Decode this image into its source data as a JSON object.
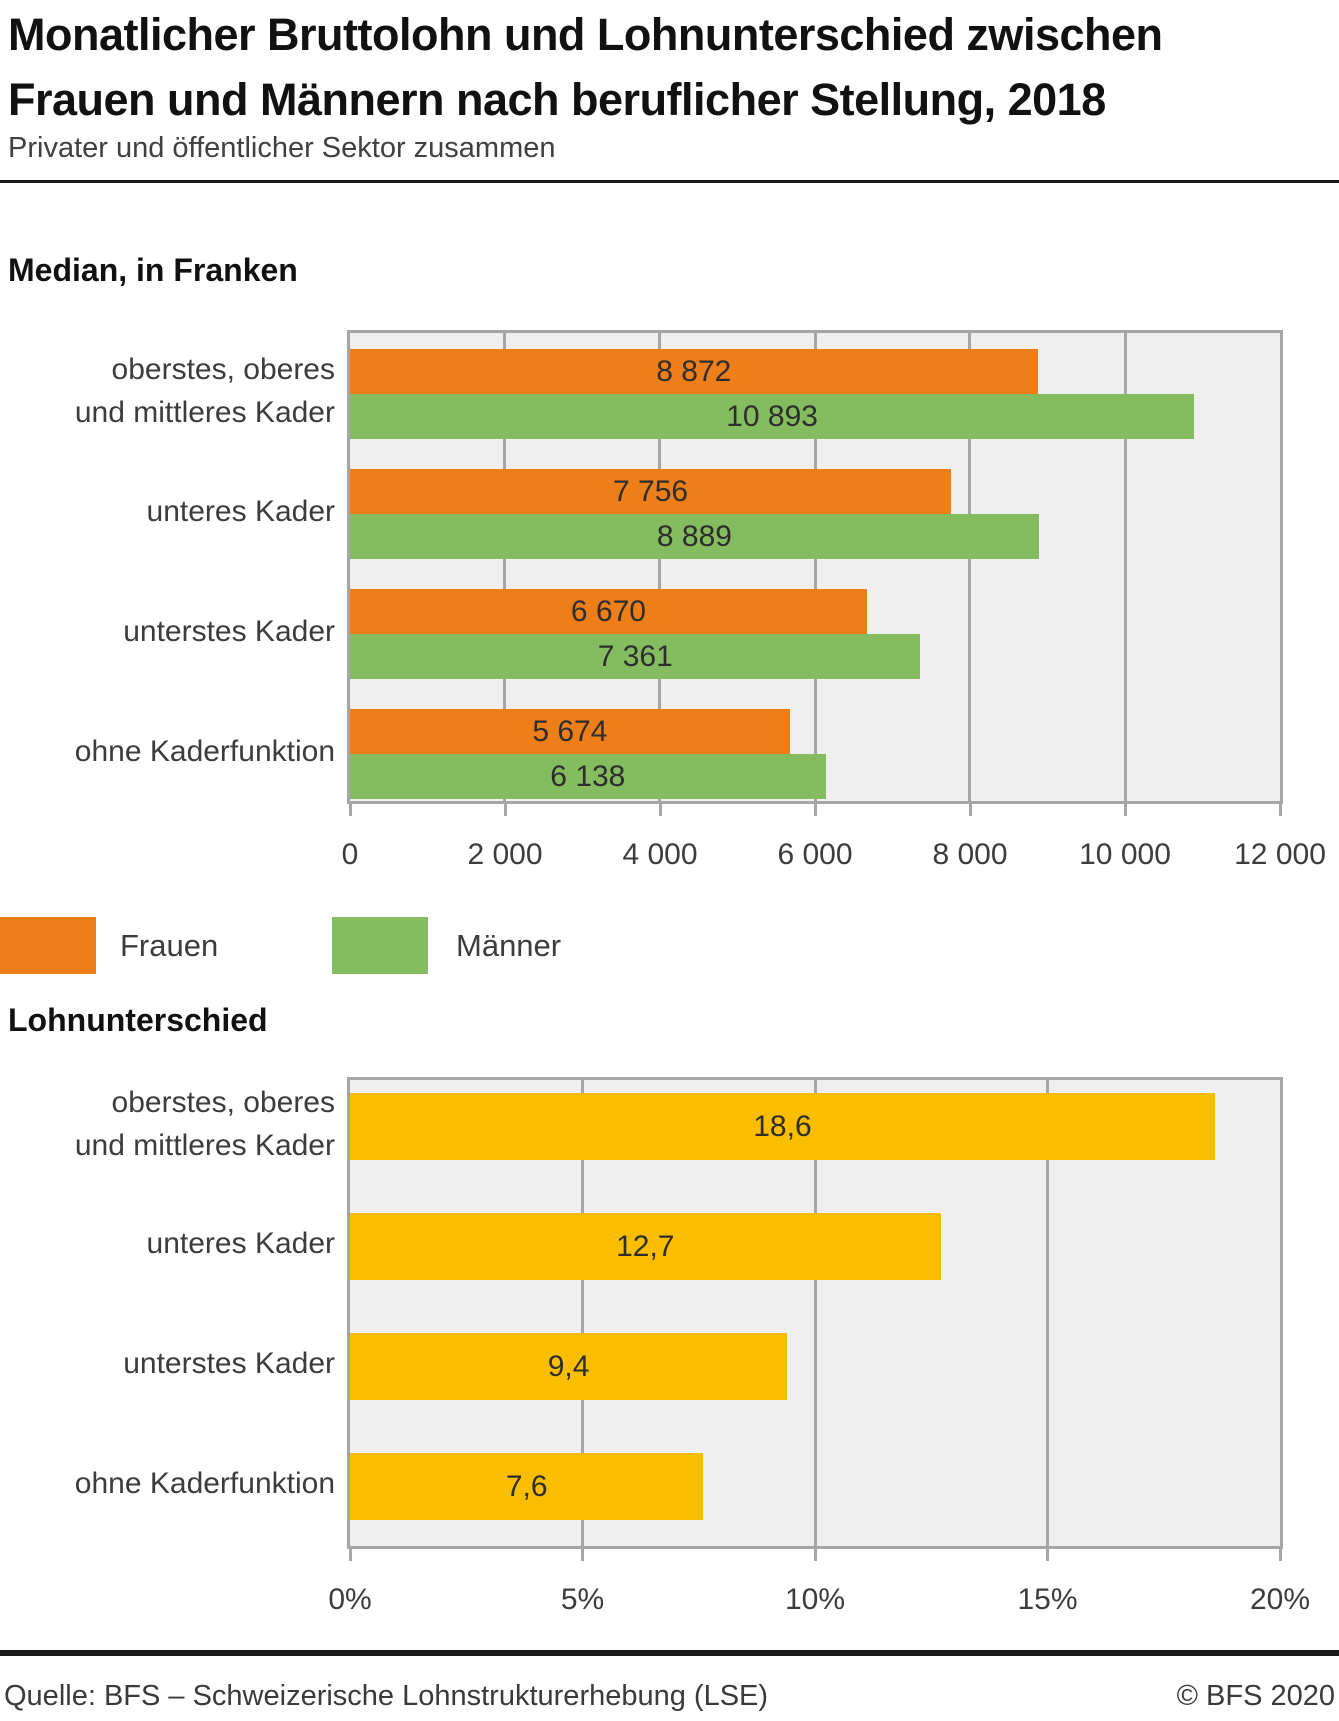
{
  "header": {
    "title": "Monatlicher Bruttolohn und Lohnunterschied zwischen\nFrauen und Männern nach beruflicher Stellung, 2018",
    "subtitle": "Privater und öffentlicher Sektor zusammen"
  },
  "colors": {
    "women_orange": "#EE7F18",
    "men_green": "#85BC5F",
    "gap_yellow": "#FABD00",
    "plot_background": "#EFEFEF",
    "gridline_gray": "#A6A6A6"
  },
  "legend": {
    "items": [
      {
        "label": "Frauen",
        "color": "#EE7F18"
      },
      {
        "label": "Männer",
        "color": "#85BC5F"
      }
    ]
  },
  "footer": {
    "source": "Quelle: BFS – Schweizerische Lohnstrukturerhebung (LSE)",
    "copyright": "© BFS 2020"
  },
  "chart_data": [
    {
      "type": "bar",
      "orientation": "horizontal",
      "section_title": "Median, in Franken",
      "categories": [
        "oberstes, oberes\nund mittleres Kader",
        "unteres Kader",
        "unterstes Kader",
        "ohne Kaderfunktion"
      ],
      "series": [
        {
          "name": "Frauen",
          "color": "#EE7F18",
          "values": [
            8872,
            7756,
            6670,
            5674
          ],
          "value_labels": [
            "8 872",
            "7 756",
            "6 670",
            "5 674"
          ]
        },
        {
          "name": "Männer",
          "color": "#85BC5F",
          "values": [
            10893,
            8889,
            7361,
            6138
          ],
          "value_labels": [
            "10 893",
            "8 889",
            "7 361",
            "6 138"
          ]
        }
      ],
      "xlim": [
        0,
        12000
      ],
      "ticks": [
        {
          "v": 0,
          "label": "0"
        },
        {
          "v": 2000,
          "label": "2 000"
        },
        {
          "v": 4000,
          "label": "4 000"
        },
        {
          "v": 6000,
          "label": "6 000"
        },
        {
          "v": 8000,
          "label": "8 000"
        },
        {
          "v": 10000,
          "label": "10 000"
        },
        {
          "v": 12000,
          "label": "12 000"
        }
      ],
      "grid": true,
      "legend_position": "below"
    },
    {
      "type": "bar",
      "orientation": "horizontal",
      "section_title": "Lohnunterschied",
      "categories": [
        "oberstes, oberes\nund mittleres Kader",
        "unteres Kader",
        "unterstes Kader",
        "ohne Kaderfunktion"
      ],
      "series": [
        {
          "name": "Lohnunterschied",
          "color": "#FABD00",
          "values": [
            18.6,
            12.7,
            9.4,
            7.6
          ],
          "value_labels": [
            "18,6",
            "12,7",
            "9,4",
            "7,6"
          ]
        }
      ],
      "xlim": [
        0,
        20
      ],
      "ticks": [
        {
          "v": 0,
          "label": "0%"
        },
        {
          "v": 5,
          "label": "5%"
        },
        {
          "v": 10,
          "label": "10%"
        },
        {
          "v": 15,
          "label": "15%"
        },
        {
          "v": 20,
          "label": "20%"
        }
      ],
      "grid": true,
      "legend_position": "none"
    }
  ]
}
